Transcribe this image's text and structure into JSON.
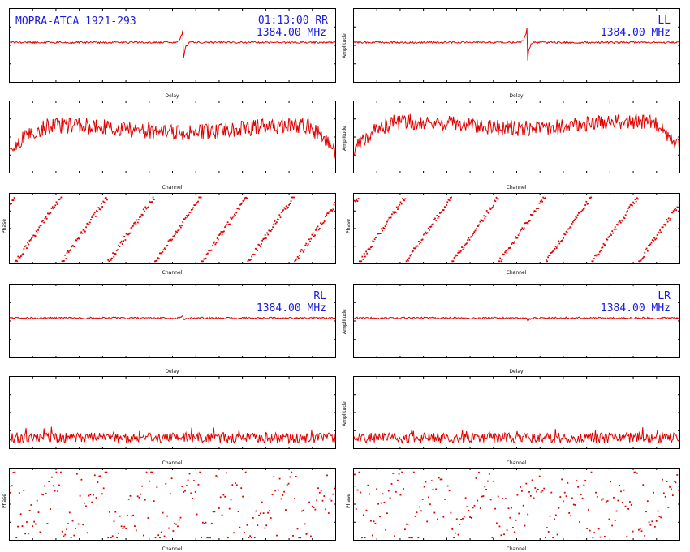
{
  "header": {
    "source_line": "MOPRA-ATCA 1921-293",
    "time_pol": "01:13:00  RR",
    "freq": "1384.00 MHz"
  },
  "colors": {
    "trace": "#e00000",
    "annotation": "#1a1adc",
    "axes": "#000000"
  },
  "chart_data": [
    {
      "id": "rr-delay",
      "type": "line",
      "pol": "RR",
      "column": "left",
      "row": 1,
      "xlabel": "Delay",
      "ylabel": "",
      "annotation": [
        "01:13:00  RR",
        "1384.00 MHz"
      ],
      "feature": {
        "kind": "delay-spike",
        "position_fraction": 0.535,
        "peak_up": 0.75,
        "peak_down": -1.0
      }
    },
    {
      "id": "ll-delay",
      "type": "line",
      "pol": "LL",
      "column": "right",
      "row": 1,
      "xlabel": "Delay",
      "ylabel": "Amplitude",
      "annotation": [
        "LL",
        "1384.00 MHz"
      ],
      "feature": {
        "kind": "delay-spike",
        "position_fraction": 0.535,
        "peak_up": 0.85,
        "peak_down": -0.95
      }
    },
    {
      "id": "rr-amp",
      "type": "line",
      "pol": "RR",
      "column": "left",
      "row": 2,
      "xlabel": "Channel",
      "ylabel": "",
      "shape": "bandpass",
      "level": 0.62,
      "noise": 0.12
    },
    {
      "id": "ll-amp",
      "type": "line",
      "pol": "LL",
      "column": "right",
      "row": 2,
      "xlabel": "Channel",
      "ylabel": "Amplitude",
      "shape": "bandpass",
      "level": 0.68,
      "noise": 0.12
    },
    {
      "id": "rr-phase",
      "type": "scatter",
      "pol": "RR",
      "column": "left",
      "row": 3,
      "xlabel": "Channel",
      "ylabel": "Phase",
      "wraps": 7,
      "scatter": 0.04
    },
    {
      "id": "ll-phase",
      "type": "scatter",
      "pol": "LL",
      "column": "right",
      "row": 3,
      "xlabel": "Channel",
      "ylabel": "Phase",
      "wraps": 7,
      "scatter": 0.04
    },
    {
      "id": "rl-delay",
      "type": "line",
      "pol": "RL",
      "column": "left",
      "row": 4,
      "xlabel": "Delay",
      "ylabel": "",
      "annotation": [
        "RL",
        "1384.00 MHz"
      ],
      "feature": {
        "kind": "delay-spike",
        "position_fraction": 0.535,
        "peak_up": 0.12,
        "peak_down": -0.08
      }
    },
    {
      "id": "lr-delay",
      "type": "line",
      "pol": "LR",
      "column": "right",
      "row": 4,
      "xlabel": "Delay",
      "ylabel": "Amplitude",
      "annotation": [
        "LR",
        "1384.00 MHz"
      ],
      "feature": {
        "kind": "delay-spike",
        "position_fraction": 0.535,
        "peak_up": 0.02,
        "peak_down": -0.15
      }
    },
    {
      "id": "rl-amp",
      "type": "line",
      "pol": "RL",
      "column": "left",
      "row": 5,
      "xlabel": "Channel",
      "ylabel": "",
      "shape": "noise-floor",
      "level": 0.12,
      "noise": 0.1
    },
    {
      "id": "lr-amp",
      "type": "line",
      "pol": "LR",
      "column": "right",
      "row": 5,
      "xlabel": "Channel",
      "ylabel": "Amplitude",
      "shape": "noise-floor",
      "level": 0.12,
      "noise": 0.1
    },
    {
      "id": "rl-phase",
      "type": "scatter",
      "pol": "RL",
      "column": "left",
      "row": 6,
      "xlabel": "Channel",
      "ylabel": "Phase",
      "wraps": 7,
      "scatter": 0.25
    },
    {
      "id": "lr-phase",
      "type": "scatter",
      "pol": "LR",
      "column": "right",
      "row": 6,
      "xlabel": "Channel",
      "ylabel": "Phase",
      "wraps": 7,
      "scatter": 0.25
    }
  ]
}
